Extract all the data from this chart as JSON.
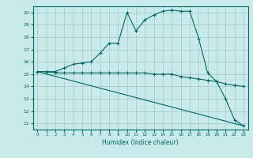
{
  "title": "",
  "xlabel": "Humidex (Indice chaleur)",
  "bg_color": "#c8eaea",
  "grid_color": "#a0c8c8",
  "line_color": "#006666",
  "line1_x": [
    0,
    1,
    2,
    3,
    4,
    5,
    6,
    7,
    8,
    9,
    10,
    11,
    12,
    13,
    14,
    15,
    16,
    17,
    18,
    19,
    20,
    21,
    22,
    23
  ],
  "line1_y": [
    15.2,
    15.2,
    15.2,
    15.5,
    15.8,
    15.9,
    16.0,
    16.7,
    17.5,
    17.5,
    20.0,
    18.5,
    19.4,
    19.8,
    20.1,
    20.2,
    20.1,
    20.1,
    17.9,
    15.1,
    14.4,
    13.0,
    11.3,
    10.8
  ],
  "line2_x": [
    0,
    1,
    2,
    3,
    4,
    5,
    6,
    7,
    8,
    9,
    10,
    11,
    12,
    13,
    14,
    15,
    16,
    17,
    18,
    19,
    20,
    21,
    22,
    23
  ],
  "line2_y": [
    15.2,
    15.2,
    15.1,
    15.1,
    15.1,
    15.1,
    15.1,
    15.1,
    15.1,
    15.1,
    15.1,
    15.1,
    15.1,
    15.0,
    15.0,
    15.0,
    14.8,
    14.7,
    14.6,
    14.5,
    14.4,
    14.2,
    14.1,
    14.0
  ],
  "line3_x": [
    0,
    23
  ],
  "line3_y": [
    15.2,
    10.8
  ],
  "xlim": [
    -0.5,
    23.5
  ],
  "ylim": [
    10.5,
    20.5
  ],
  "yticks": [
    11,
    12,
    13,
    14,
    15,
    16,
    17,
    18,
    19,
    20
  ],
  "xticks": [
    0,
    1,
    2,
    3,
    4,
    5,
    6,
    7,
    8,
    9,
    10,
    11,
    12,
    13,
    14,
    15,
    16,
    17,
    18,
    19,
    20,
    21,
    22,
    23
  ]
}
